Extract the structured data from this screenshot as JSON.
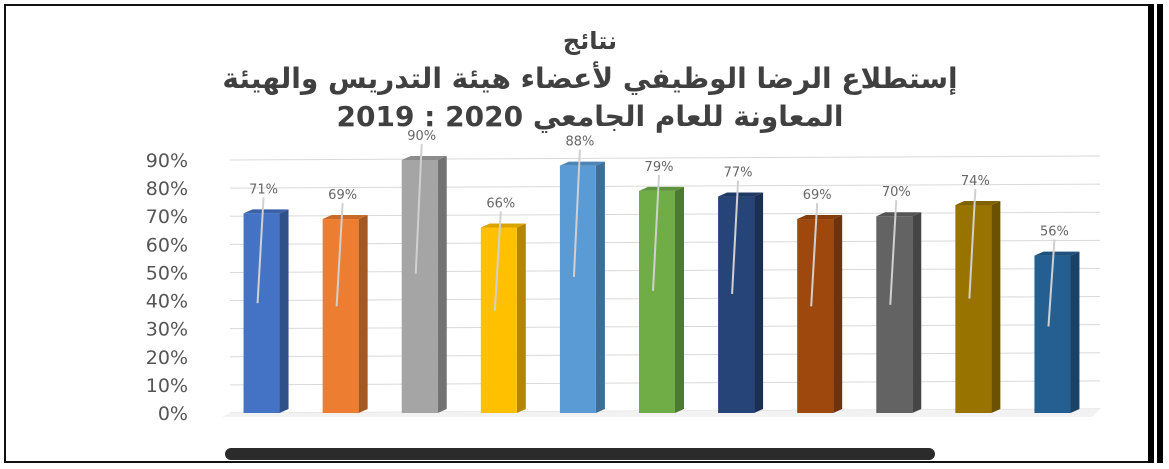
{
  "chart_data": {
    "type": "bar",
    "title_lines": [
      "نتائج",
      "إستطلاع الرضا الوظيفي لأعضاء هيئة التدريس والهيئة",
      "المعاونة للعام الجامعي 2020 : 2019"
    ],
    "xlabel": "",
    "ylabel": "",
    "categories": [
      "",
      "",
      "",
      "",
      "",
      "",
      "",
      "",
      "",
      "",
      ""
    ],
    "values": [
      71,
      69,
      90,
      66,
      88,
      79,
      77,
      69,
      70,
      74,
      56
    ],
    "data_labels": [
      "71%",
      "69%",
      "90%",
      "66%",
      "88%",
      "79%",
      "77%",
      "69%",
      "70%",
      "74%",
      "56%"
    ],
    "y_ticks": [
      "0%",
      "10%",
      "20%",
      "30%",
      "40%",
      "50%",
      "60%",
      "70%",
      "80%",
      "90%"
    ],
    "ylim": [
      0,
      90
    ],
    "grid": true,
    "legend": "none",
    "bar_style": "3d",
    "colors": [
      "#4472c4",
      "#ed7d31",
      "#a5a5a5",
      "#ffc000",
      "#5b9bd5",
      "#70ad47",
      "#264478",
      "#9e480e",
      "#636363",
      "#997300",
      "#255e91"
    ]
  }
}
